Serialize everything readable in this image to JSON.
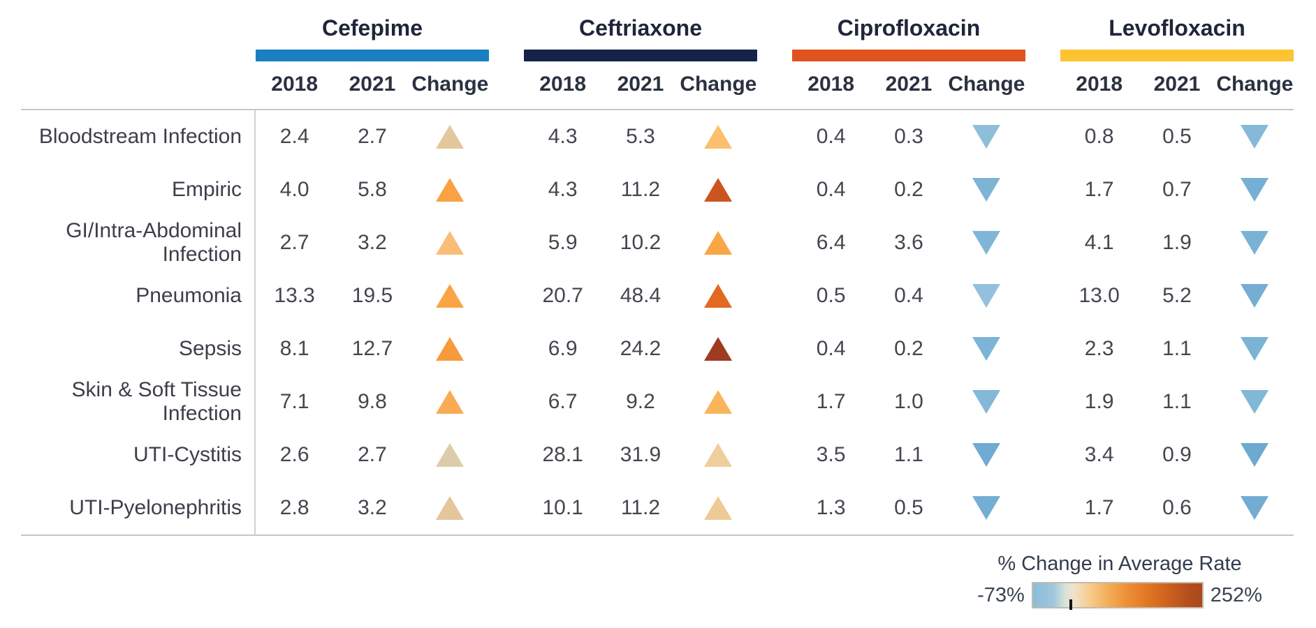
{
  "legend": {
    "title": "% Change in Average Rate",
    "min_label": "-73%",
    "max_label": "252%"
  },
  "chart_data": {
    "type": "table",
    "title": "",
    "row_categories": [
      "Bloodstream Infection",
      "Empiric",
      "GI/Intra-Abdominal Infection",
      "Pneumonia",
      "Sepsis",
      "Skin & Soft Tissue Infection",
      "UTI-Cystitis",
      "UTI-Pyelonephritis"
    ],
    "sub_columns": [
      "2018",
      "2021",
      "Change"
    ],
    "series": [
      {
        "name": "Cefepime",
        "bar_color": "#1a7fc2",
        "values_2018": [
          "2.4",
          "4.0",
          "2.7",
          "13.3",
          "8.1",
          "7.1",
          "2.6",
          "2.8"
        ],
        "values_2021": [
          "2.7",
          "5.8",
          "3.2",
          "19.5",
          "12.7",
          "9.8",
          "2.7",
          "3.2"
        ],
        "pct_change": [
          13,
          45,
          19,
          47,
          57,
          38,
          4,
          14
        ],
        "change_dir": [
          "up",
          "up",
          "up",
          "up",
          "up",
          "up",
          "up",
          "up"
        ],
        "change_colors": [
          "#e5c79c",
          "#f9a243",
          "#f9bd78",
          "#f9a445",
          "#f79a3b",
          "#f9ab55",
          "#ddccab",
          "#e5c59a"
        ]
      },
      {
        "name": "Ceftriaxone",
        "bar_color": "#16224a",
        "values_2018": [
          "4.3",
          "4.3",
          "5.9",
          "20.7",
          "6.9",
          "6.7",
          "28.1",
          "10.1"
        ],
        "values_2021": [
          "5.3",
          "11.2",
          "10.2",
          "48.4",
          "24.2",
          "9.2",
          "31.9",
          "11.2"
        ],
        "pct_change": [
          23,
          160,
          73,
          134,
          251,
          37,
          14,
          11
        ],
        "change_dir": [
          "up",
          "up",
          "up",
          "up",
          "up",
          "up",
          "up",
          "up"
        ],
        "change_colors": [
          "#fac06e",
          "#cc5420",
          "#f9a647",
          "#e2691f",
          "#9e3b20",
          "#fab45c",
          "#efce9b",
          "#eeca94"
        ]
      },
      {
        "name": "Ciprofloxacin",
        "bar_color": "#e0531f",
        "values_2018": [
          "0.4",
          "0.4",
          "6.4",
          "0.5",
          "0.4",
          "1.7",
          "3.5",
          "1.3"
        ],
        "values_2021": [
          "0.3",
          "0.2",
          "3.6",
          "0.4",
          "0.2",
          "1.0",
          "1.1",
          "0.5"
        ],
        "pct_change": [
          -25,
          -50,
          -44,
          -20,
          -50,
          -41,
          -69,
          -62
        ],
        "change_dir": [
          "down",
          "down",
          "down",
          "down",
          "down",
          "down",
          "down",
          "down"
        ],
        "change_colors": [
          "#8fbedb",
          "#7db4d6",
          "#7fb6d7",
          "#93c1dd",
          "#7db4d6",
          "#82b8d8",
          "#6fabd2",
          "#74aed3"
        ]
      },
      {
        "name": "Levofloxacin",
        "bar_color": "#fcc430",
        "values_2018": [
          "0.8",
          "1.7",
          "4.1",
          "13.0",
          "2.3",
          "1.9",
          "3.4",
          "1.7"
        ],
        "values_2021": [
          "0.5",
          "0.7",
          "1.9",
          "5.2",
          "1.1",
          "1.1",
          "0.9",
          "0.6"
        ],
        "pct_change": [
          -38,
          -59,
          -54,
          -60,
          -52,
          -42,
          -74,
          -65
        ],
        "change_dir": [
          "down",
          "down",
          "down",
          "down",
          "down",
          "down",
          "down",
          "down"
        ],
        "change_colors": [
          "#84b9d8",
          "#76afd4",
          "#7ab2d5",
          "#75aed3",
          "#7bb3d5",
          "#81b7d7",
          "#6da9d1",
          "#72acd2"
        ]
      }
    ],
    "legend": {
      "title": "% Change in Average Rate",
      "range_min": -73,
      "range_max": 252,
      "min_color": "#8cbcdc",
      "max_color": "#a8491c"
    }
  }
}
